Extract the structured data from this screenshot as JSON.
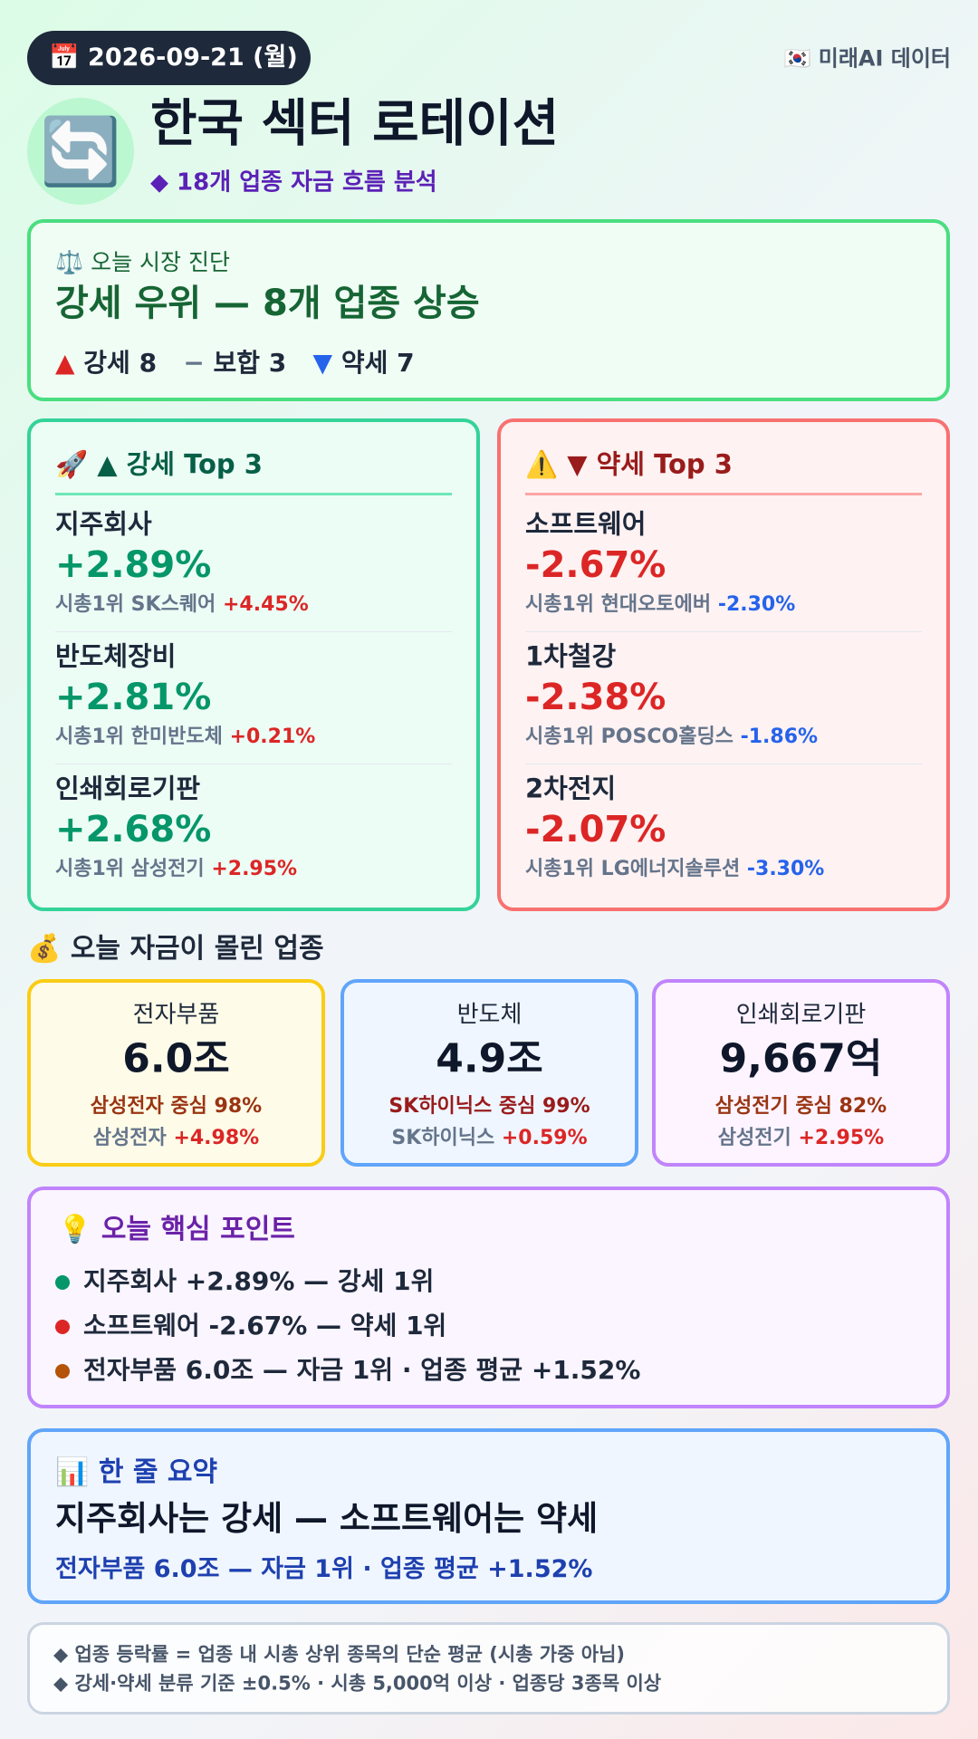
{
  "header": {
    "date_icon": "📅",
    "date": "2026-09-21 (월)",
    "source_icon": "🇰🇷",
    "source": "미래AI 데이터",
    "icon": "🔄",
    "title": "한국 섹터 로테이션",
    "subtitle": "◆ 18개 업종 자금 흐름 분석"
  },
  "diagnosis": {
    "label_icon": "⚖️",
    "label": "오늘 시장 진단",
    "headline": "강세 우위 — 8개 업종 상승",
    "counts": [
      {
        "icon": "▲",
        "text": "강세 8"
      },
      {
        "icon": "−",
        "text": "보합 3"
      },
      {
        "icon": "▼",
        "text": "약세 7"
      }
    ]
  },
  "strong": {
    "icon": "🚀",
    "title": "▲ 강세 Top 3",
    "items": [
      {
        "name": "지주회사",
        "change": "+2.89%",
        "leader": "시총1위 SK스퀘어",
        "leader_change": "+4.45%"
      },
      {
        "name": "반도체장비",
        "change": "+2.81%",
        "leader": "시총1위 한미반도체",
        "leader_change": "+0.21%"
      },
      {
        "name": "인쇄회로기판",
        "change": "+2.68%",
        "leader": "시총1위 삼성전기",
        "leader_change": "+2.95%"
      }
    ]
  },
  "weak": {
    "icon": "⚠️",
    "title": "▼ 약세 Top 3",
    "items": [
      {
        "name": "소프트웨어",
        "change": "-2.67%",
        "leader": "시총1위 현대오토에버",
        "leader_change": "-2.30%"
      },
      {
        "name": "1차철강",
        "change": "-2.38%",
        "leader": "시총1위 POSCO홀딩스",
        "leader_change": "-1.86%"
      },
      {
        "name": "2차전지",
        "change": "-2.07%",
        "leader": "시총1위 LG에너지솔루션",
        "leader_change": "-3.30%"
      }
    ]
  },
  "flows": {
    "icon": "💰",
    "title": "오늘 자금이 몰린 업종",
    "cards": [
      {
        "name": "전자부품",
        "amount": "6.0조",
        "focus": "삼성전자 중심 98%",
        "leader": "삼성전자",
        "leader_change": "+4.98%"
      },
      {
        "name": "반도체",
        "amount": "4.9조",
        "focus": "SK하이닉스 중심 99%",
        "leader": "SK하이닉스",
        "leader_change": "+0.59%"
      },
      {
        "name": "인쇄회로기판",
        "amount": "9,667억",
        "focus": "삼성전기 중심 82%",
        "leader": "삼성전기",
        "leader_change": "+2.95%"
      }
    ]
  },
  "points": {
    "icon": "💡",
    "title": "오늘 핵심 포인트",
    "items": [
      "지주회사 +2.89% — 강세 1위",
      "소프트웨어 -2.67% — 약세 1위",
      "전자부품 6.0조 — 자금 1위 · 업종 평균 +1.52%"
    ]
  },
  "summary": {
    "icon": "📊",
    "title": "한 줄 요약",
    "headline": "지주회사는 강세 — 소프트웨어는 약세",
    "detail": "전자부품 6.0조 — 자금 1위 · 업종 평균 +1.52%"
  },
  "notes": [
    "◆ 업종 등락률 = 업종 내 시총 상위 종목의 단순 평균 (시총 가중 아님)",
    "◆ 강세·약세 분류 기준 ±0.5% · 시총 5,000억 이상 · 업종당 3종목 이상"
  ]
}
